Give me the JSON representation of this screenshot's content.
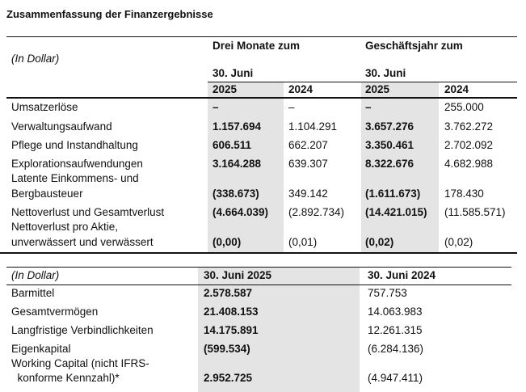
{
  "title": "Zusammenfassung der Finanzergebnisse",
  "table1": {
    "unit_label": "(In Dollar)",
    "group_headers": [
      "Drei Monate zum",
      "Geschäftsjahr zum"
    ],
    "date_headers": [
      "30. Juni",
      "30. Juni"
    ],
    "year_headers": [
      "2025",
      "2024",
      "2025",
      "2024"
    ],
    "rows": [
      {
        "label": [
          "Umsatzerlöse"
        ],
        "values": [
          "–",
          "–",
          "–",
          "255.000"
        ]
      },
      {
        "label": [
          "Verwaltungsaufwand"
        ],
        "values": [
          "1.157.694",
          "1.104.291",
          "3.657.276",
          "3.762.272"
        ]
      },
      {
        "label": [
          "Pflege und Instandhaltung"
        ],
        "values": [
          "606.511",
          "662.207",
          "3.350.461",
          "2.702.092"
        ]
      },
      {
        "label": [
          "Explorationsaufwendungen"
        ],
        "values": [
          "3.164.288",
          "639.307",
          "8.322.676",
          "4.682.988"
        ]
      },
      {
        "label": [
          "Latente Einkommens- und",
          "Bergbausteuer"
        ],
        "values": [
          "(338.673)",
          "349.142",
          "(1.611.673)",
          "178.430"
        ]
      },
      {
        "label": [
          "Nettoverlust und Gesamtverlust"
        ],
        "values": [
          "(4.664.039)",
          "(2.892.734)",
          "(14.421.015)",
          "(11.585.571)"
        ]
      },
      {
        "label": [
          "Nettoverlust pro Aktie,",
          "unverwässert und verwässert"
        ],
        "values": [
          "(0,00)",
          "(0,01)",
          "(0,02)",
          "(0,02)"
        ]
      }
    ]
  },
  "table2": {
    "unit_label": "(In Dollar)",
    "headers": [
      "30. Juni 2025",
      "30. Juni 2024"
    ],
    "rows": [
      {
        "label": [
          "Barmittel"
        ],
        "values": [
          "2.578.587",
          "757.753"
        ]
      },
      {
        "label": [
          "Gesamtvermögen"
        ],
        "values": [
          "21.408.153",
          "14.063.983"
        ]
      },
      {
        "label": [
          "Langfristige Verbindlichkeiten"
        ],
        "values": [
          "14.175.891",
          "12.261.315"
        ]
      },
      {
        "label": [
          "Eigenkapital"
        ],
        "values": [
          "(599.534)",
          "(6.284.136)"
        ]
      },
      {
        "label": [
          "Working Capital (nicht IFRS-",
          "  konforme Kennzahl)*"
        ],
        "values": [
          "2.952.725",
          "(4.947.411)"
        ]
      }
    ]
  }
}
